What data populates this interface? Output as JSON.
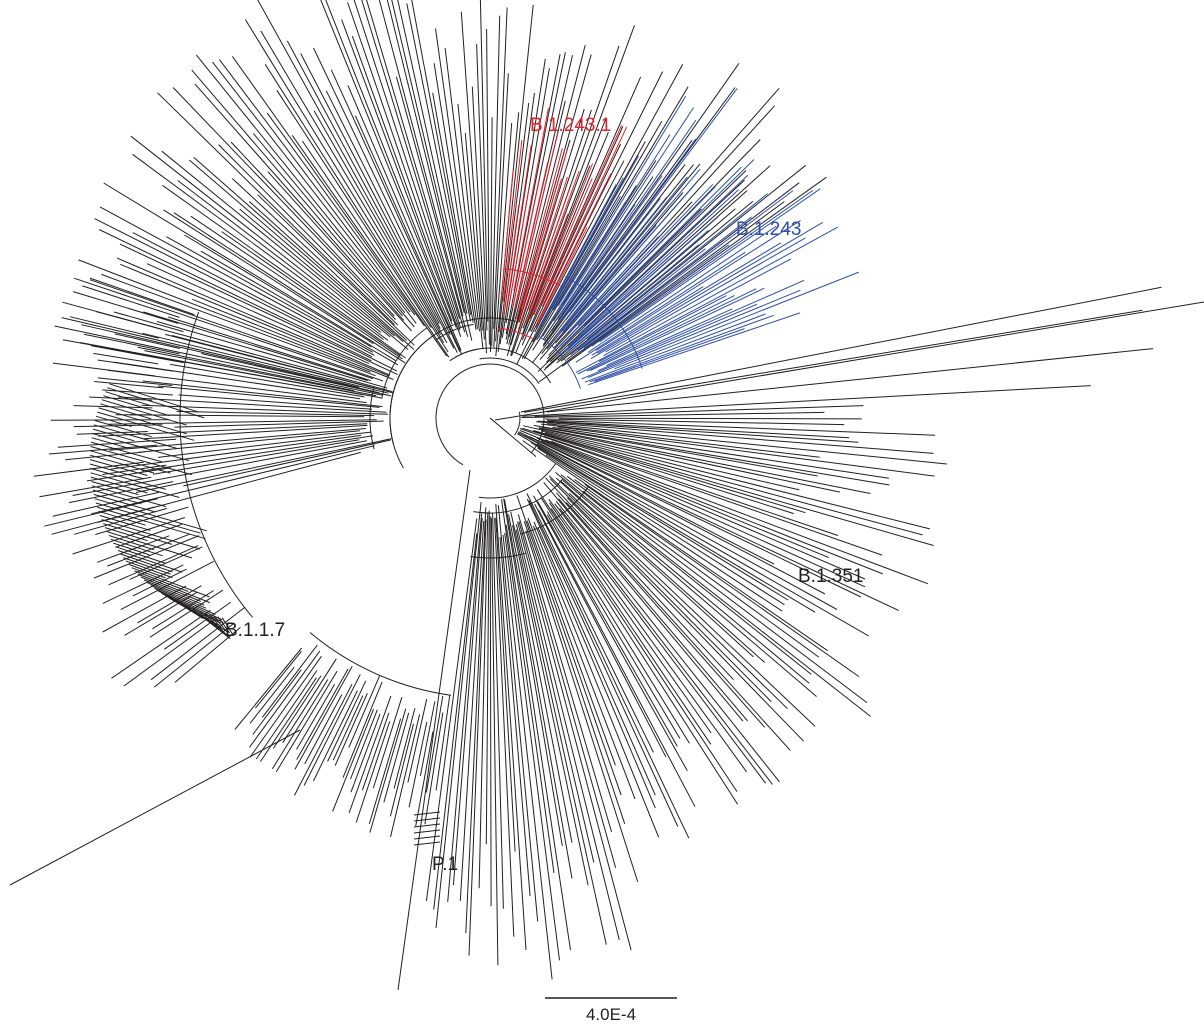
{
  "figure": {
    "type": "radial phylogenetic tree",
    "background": "#ffffff"
  },
  "clades": [
    {
      "id": "b12431",
      "label": "B.1.243.1",
      "color": "#e8202a"
    },
    {
      "id": "b1243",
      "label": "B.1.243",
      "color": "#2e4ea8"
    },
    {
      "id": "b1351",
      "label": "B.1.351",
      "color": "#231f20"
    },
    {
      "id": "b117",
      "label": "B.1.1.7",
      "color": "#231f20"
    },
    {
      "id": "p1",
      "label": "P.1",
      "color": "#231f20"
    }
  ],
  "scale_bar": {
    "label": "4.0E-4"
  },
  "colors": {
    "default_branch": "#231f20"
  }
}
